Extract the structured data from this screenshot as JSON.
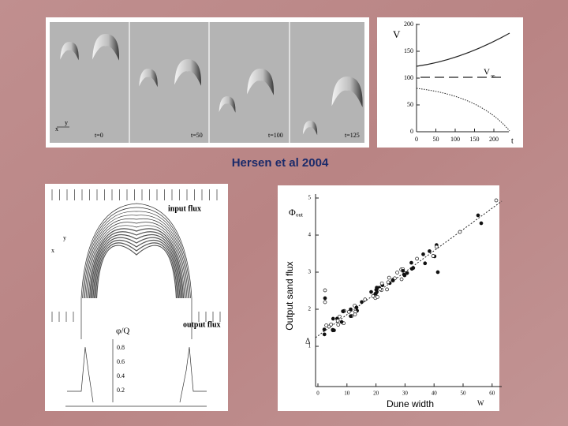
{
  "top_left": {
    "labels": [
      "t=0",
      "t=50",
      "t=100",
      "t=125"
    ],
    "axis_y": "y",
    "axis_x": "x"
  },
  "top_right": {
    "y_label": "V",
    "x_label": "t",
    "annotation": "V",
    "annotation_sub": "∞",
    "y_ticks": [
      "200",
      "150",
      "100",
      "50",
      "0"
    ],
    "x_ticks": [
      "0",
      "50",
      "100",
      "150",
      "200"
    ]
  },
  "caption": "Hersen et al 2004",
  "bottom_left": {
    "top_label": "input flux",
    "bottom_label": "output flux",
    "y_axis": "y",
    "x_axis": "x",
    "ratio_label": "φ/Q",
    "ticks": [
      "0.8",
      "0.6",
      "0.4",
      "0.2"
    ]
  },
  "bottom_right": {
    "y_label": "Φ",
    "y_label_sub": "out",
    "y_title": "Output sand flux",
    "x_title": "Dune width",
    "x_label": "W",
    "delta": "Δ",
    "y_ticks": [
      "5",
      "4",
      "3",
      "2",
      "1"
    ],
    "x_ticks": [
      "0",
      "10",
      "20",
      "30",
      "40",
      "50",
      "60"
    ]
  }
}
